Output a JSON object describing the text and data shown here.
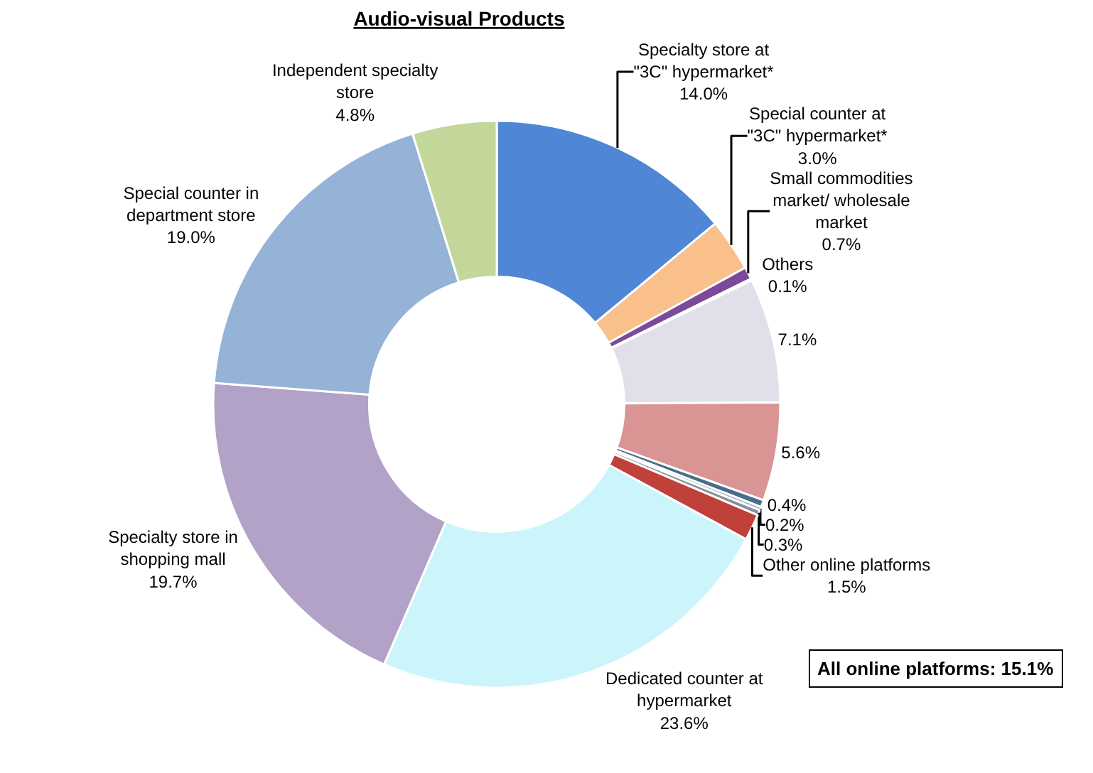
{
  "chart_data": {
    "type": "donut",
    "title": "Audio-visual Products",
    "categories": [
      "Specialty store at \"3C\" hypermarket*",
      "Special counter at \"3C\" hypermarket*",
      "Small commodities market/ wholesale market",
      "Others",
      null,
      null,
      null,
      null,
      null,
      "Other online platforms",
      "Dedicated counter at hypermarket",
      "Specialty store in shopping mall",
      "Special counter in department store",
      "Independent specialty store"
    ],
    "values": [
      14.0,
      3.0,
      0.7,
      0.1,
      7.1,
      5.6,
      0.4,
      0.2,
      0.3,
      1.5,
      23.6,
      19.7,
      19.0,
      4.8
    ],
    "value_labels": [
      "14.0%",
      "3.0%",
      "0.7%",
      "0.1%",
      "7.1%",
      "5.6%",
      "0.4%",
      "0.2%",
      "0.3%",
      "1.5%",
      "23.6%",
      "19.7%",
      "19.0%",
      "4.8%"
    ],
    "colors": [
      "#4f87d6",
      "#f9c08c",
      "#7b4a9a",
      "#c0504d",
      "#e3dfea",
      "#d99594",
      "#4a6d8c",
      "#9fb5c8",
      "#8a8f99",
      "#c0413a",
      "#ccf5fb",
      "#b3a2c7",
      "#95b3d7",
      "#c4d79b"
    ],
    "annotations": [
      "All online platforms: 15.1%"
    ],
    "legend": false
  }
}
